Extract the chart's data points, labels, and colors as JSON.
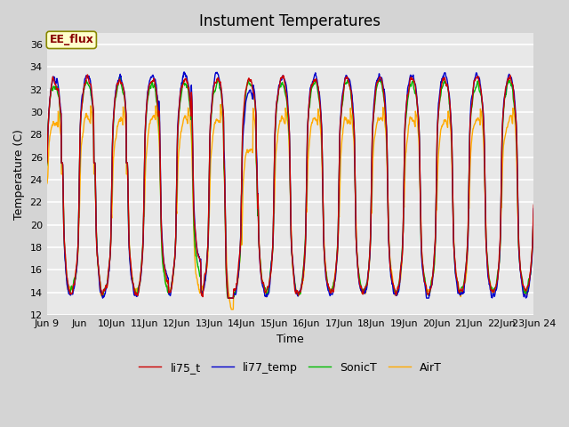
{
  "title": "Instument Temperatures",
  "xlabel": "Time",
  "ylabel": "Temperature (C)",
  "ylim": [
    12,
    37
  ],
  "xlim": [
    0,
    15
  ],
  "background_color": "#d4d4d4",
  "plot_bg_color": "#e8e8e8",
  "grid_color": "white",
  "annotation_text": "EE_flux",
  "annotation_bg": "#ffffcc",
  "annotation_border": "#888800",
  "annotation_text_color": "#880000",
  "legend_labels": [
    "li75_t",
    "li77_temp",
    "SonicT",
    "AirT"
  ],
  "line_colors": [
    "#cc0000",
    "#0000cc",
    "#00bb00",
    "#ffaa00"
  ],
  "line_width": 1.0,
  "title_fontsize": 12,
  "xlabel_fontsize": 9,
  "ylabel_fontsize": 9,
  "tick_fontsize": 8,
  "legend_fontsize": 9
}
